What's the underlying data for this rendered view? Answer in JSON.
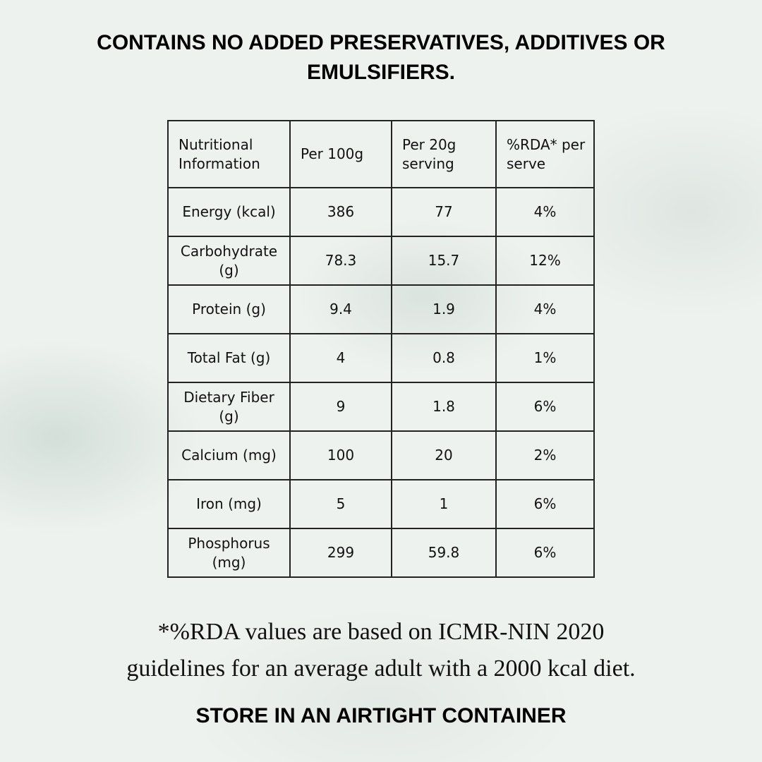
{
  "header": {
    "title": "CONTAINS NO ADDED PRESERVATIVES, ADDITIVES OR EMULSIFIERS."
  },
  "table": {
    "columns": [
      "Nutritional Information",
      "Per 100g",
      "Per 20g serving",
      "%RDA* per serve"
    ],
    "rows": [
      [
        "Energy (kcal)",
        "386",
        "77",
        "4%"
      ],
      [
        "Carbohydrate (g)",
        "78.3",
        "15.7",
        "12%"
      ],
      [
        "Protein (g)",
        "9.4",
        "1.9",
        "4%"
      ],
      [
        "Total Fat (g)",
        "4",
        "0.8",
        "1%"
      ],
      [
        "Dietary Fiber (g)",
        "9",
        "1.8",
        "6%"
      ],
      [
        "Calcium (mg)",
        "100",
        "20",
        "2%"
      ],
      [
        "Iron (mg)",
        "5",
        "1",
        "6%"
      ],
      [
        "Phosphorus (mg)",
        "299",
        "59.8",
        "6%"
      ]
    ]
  },
  "footnote": {
    "lines": [
      "*%RDA values are based on ICMR-NIN 2020",
      "guidelines for an average adult with a 2000 kcal diet."
    ]
  },
  "footer": {
    "text": "STORE IN AN AIRTIGHT CONTAINER"
  }
}
